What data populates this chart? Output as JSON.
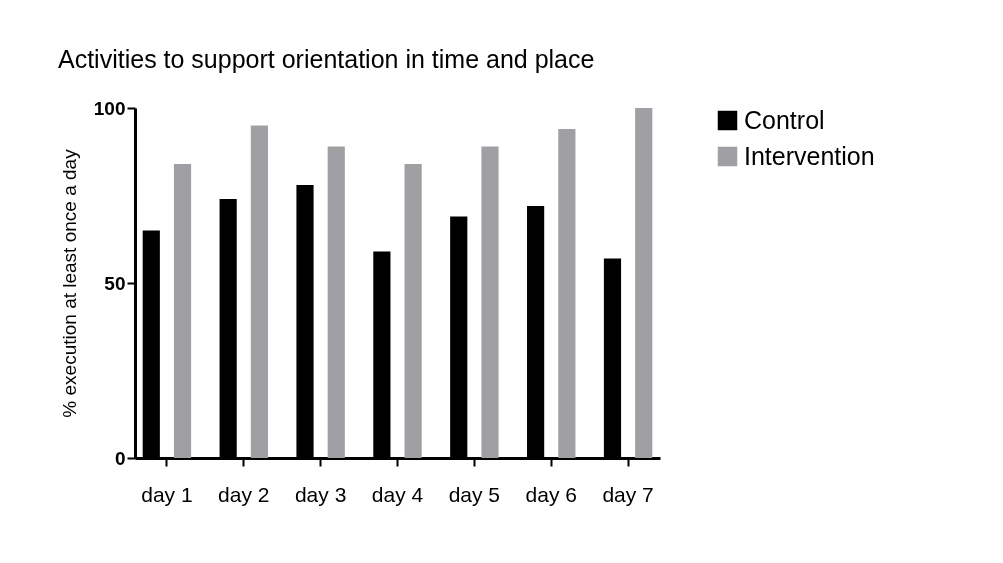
{
  "chart_data": {
    "type": "bar",
    "title": "Activities to support orientation in time and place",
    "ylabel": "% execution at least once a day",
    "categories": [
      "day 1",
      "day 2",
      "day 3",
      "day 4",
      "day 5",
      "day 6",
      "day 7"
    ],
    "series": [
      {
        "name": "Control",
        "color": "#000000",
        "values": [
          65,
          74,
          78,
          59,
          69,
          72,
          57
        ]
      },
      {
        "name": "Intervention",
        "color": "#a0a0a4",
        "values": [
          84,
          95,
          89,
          84,
          89,
          94,
          100
        ]
      }
    ],
    "ylim": [
      0,
      100
    ],
    "yticks": [
      0,
      50,
      100
    ],
    "grid": false,
    "legend": "top right"
  }
}
